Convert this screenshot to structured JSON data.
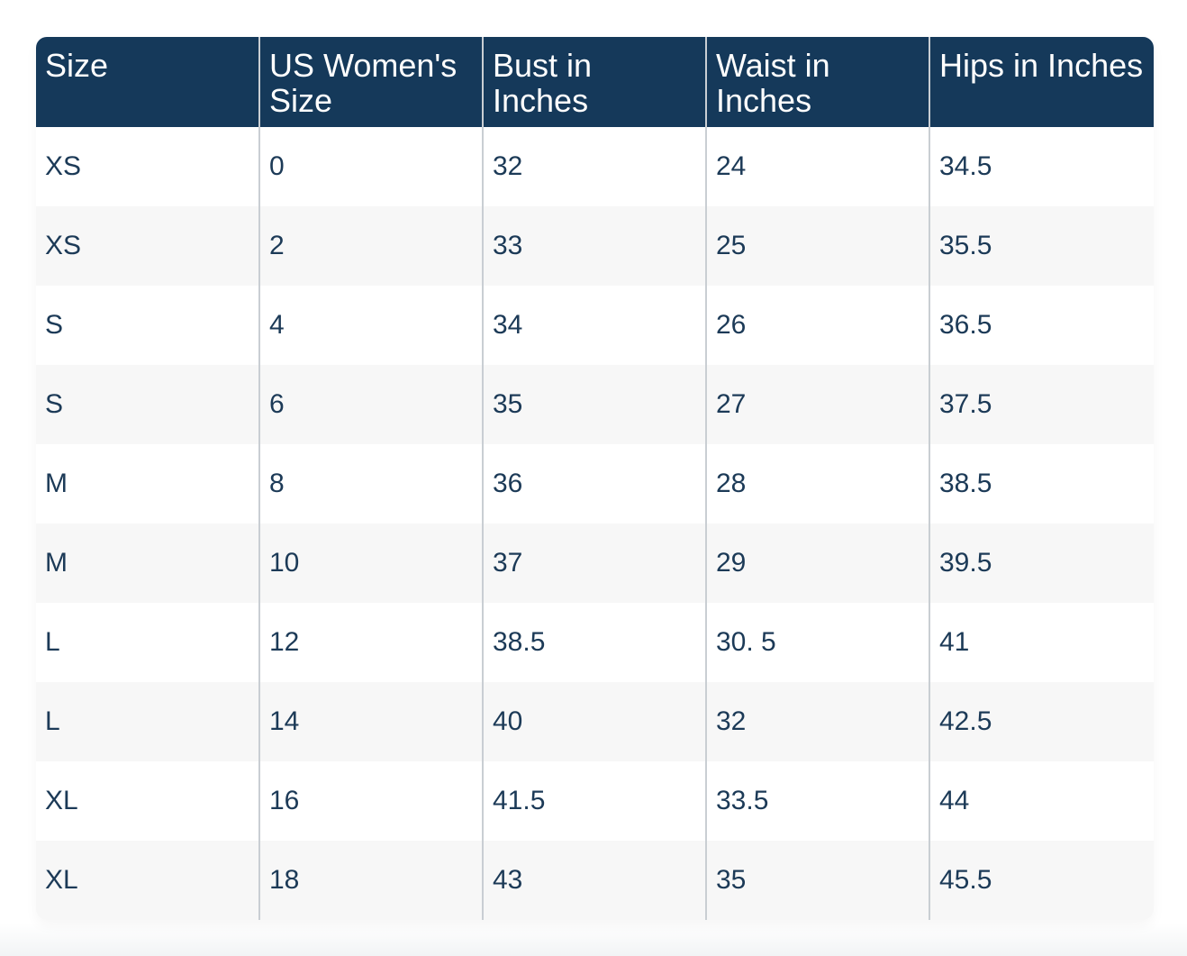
{
  "table": {
    "header": [
      "Size",
      "US Women's Size",
      "Bust in Inches",
      "Waist in Inches",
      "Hips in Inches"
    ],
    "rows": [
      [
        "XS",
        "0",
        "32",
        "24",
        "34.5"
      ],
      [
        "XS",
        "2",
        "33",
        "25",
        "35.5"
      ],
      [
        "S",
        "4",
        "34",
        "26",
        "36.5"
      ],
      [
        "S",
        "6",
        "35",
        "27",
        "37.5"
      ],
      [
        "M",
        "8",
        "36",
        "28",
        "38.5"
      ],
      [
        "M",
        "10",
        "37",
        "29",
        "39.5"
      ],
      [
        "L",
        "12",
        "38.5",
        "30. 5",
        "41"
      ],
      [
        "L",
        "14",
        "40",
        "32",
        "42.5"
      ],
      [
        "XL",
        "16",
        "41.5",
        "33.5",
        "44"
      ],
      [
        "XL",
        "18",
        "43",
        "35",
        "45.5"
      ]
    ]
  }
}
